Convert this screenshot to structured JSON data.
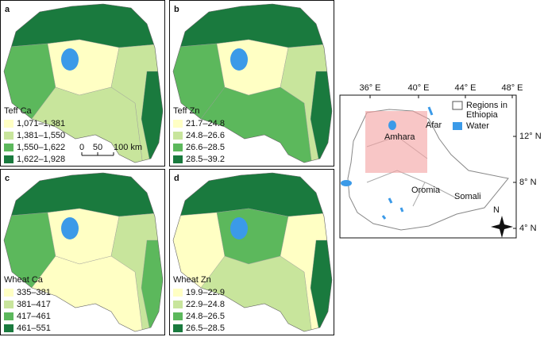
{
  "panels": [
    {
      "letter": "a",
      "title": "Teff Ca",
      "legend": [
        "1,071–1,381",
        "1,381–1,550",
        "1,550–1,622",
        "1,622–1,928"
      ]
    },
    {
      "letter": "b",
      "title": "Teff Zn",
      "legend": [
        "21.7–24.8",
        "24.8–26.6",
        "26.6–28.5",
        "28.5–39.2"
      ]
    },
    {
      "letter": "c",
      "title": "Wheat Ca",
      "legend": [
        "335–381",
        "381–417",
        "417–461",
        "461–551"
      ]
    },
    {
      "letter": "d",
      "title": "Wheat Zn",
      "legend": [
        "19.9–22.9",
        "22.9–24.8",
        "24.8–26.5",
        "26.5–28.5"
      ]
    }
  ],
  "class_colors": [
    "#ffffc4",
    "#c8e59c",
    "#5cb85c",
    "#1a7a3e"
  ],
  "scale_bar": [
    "0",
    "50",
    "100 km"
  ],
  "inset": {
    "xticks": [
      "36° E",
      "40° E",
      "44° E",
      "48° E"
    ],
    "yticks": [
      "12° N",
      "8° N",
      "4° N"
    ],
    "regions": [
      "Amhara",
      "Afar",
      "Oromia",
      "Somali"
    ],
    "legend": [
      "Regions in Ethiopia",
      "Water"
    ],
    "compass": "N"
  }
}
